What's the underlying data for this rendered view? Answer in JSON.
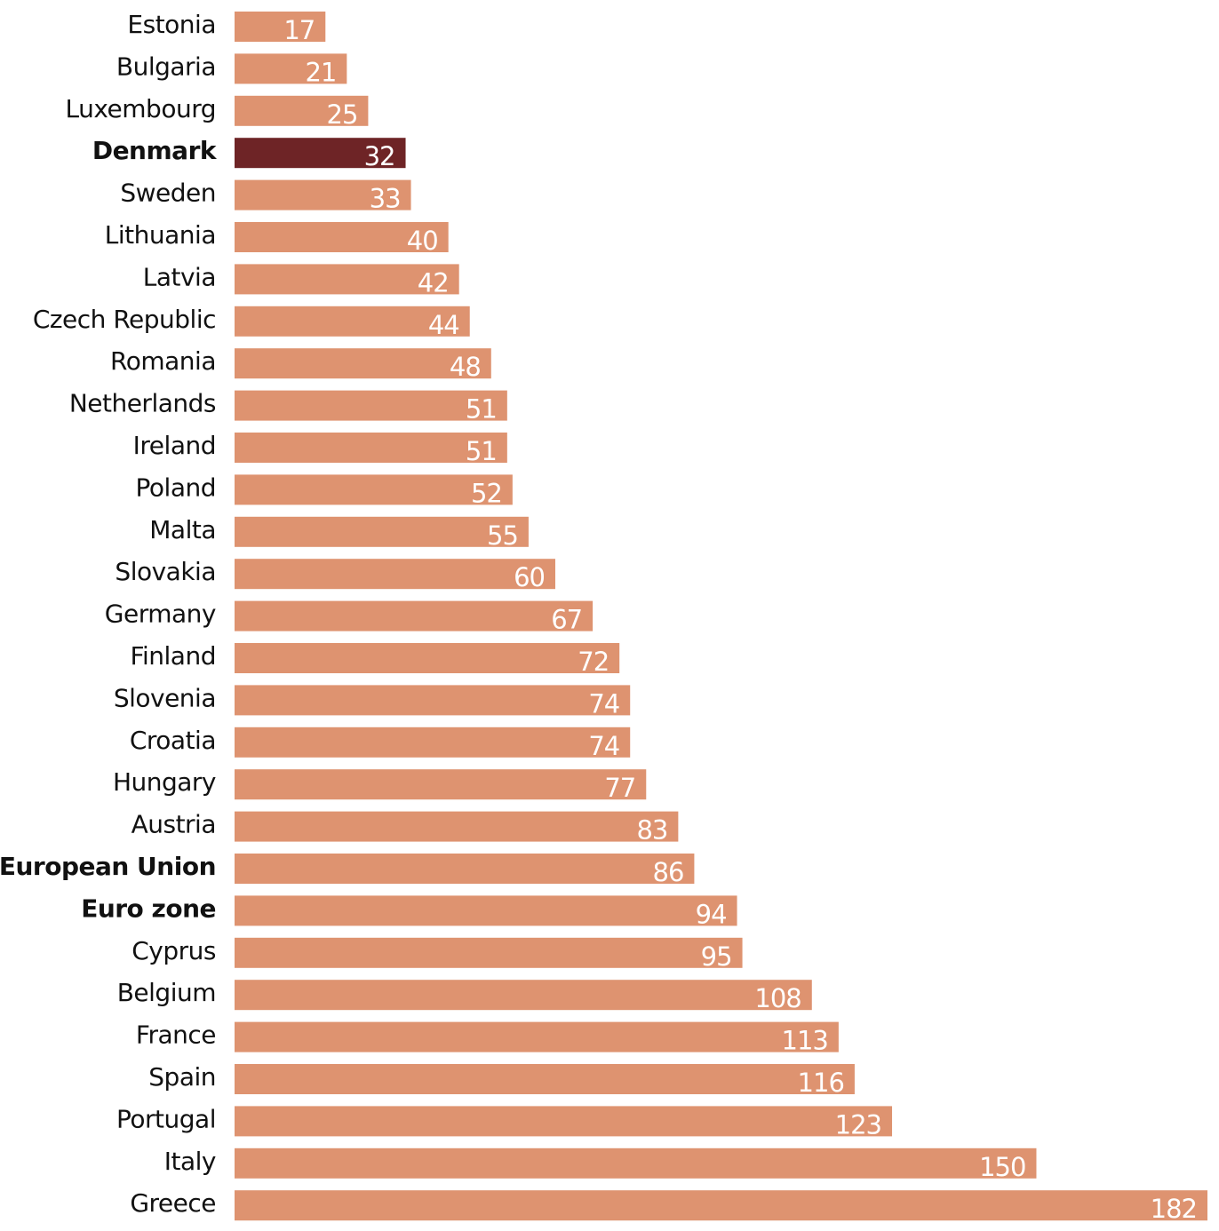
{
  "chart_data": {
    "type": "bar",
    "orientation": "horizontal",
    "title": "",
    "xlabel": "",
    "ylabel": "",
    "xlim": [
      0,
      182
    ],
    "grid": false,
    "categories": [
      "Estonia",
      "Bulgaria",
      "Luxembourg",
      "Denmark",
      "Sweden",
      "Lithuania",
      "Latvia",
      "Czech Republic",
      "Romania",
      "Netherlands",
      "Ireland",
      "Poland",
      "Malta",
      "Slovakia",
      "Germany",
      "Finland",
      "Slovenia",
      "Croatia",
      "Hungary",
      "Austria",
      "European Union",
      "Euro zone",
      "Cyprus",
      "Belgium",
      "France",
      "Spain",
      "Portugal",
      "Italy",
      "Greece"
    ],
    "values": [
      17,
      21,
      25,
      32,
      33,
      40,
      42,
      44,
      48,
      51,
      51,
      52,
      55,
      60,
      67,
      72,
      74,
      74,
      77,
      83,
      86,
      94,
      95,
      108,
      113,
      116,
      123,
      150,
      182
    ],
    "bold_categories": [
      "Denmark",
      "European Union",
      "Euro zone"
    ],
    "highlighted_category": "Denmark",
    "colors": {
      "bar": "#DE9370",
      "highlight": "#6E2426",
      "value_label": "#FFFFFF",
      "category_label": "#111111"
    }
  }
}
